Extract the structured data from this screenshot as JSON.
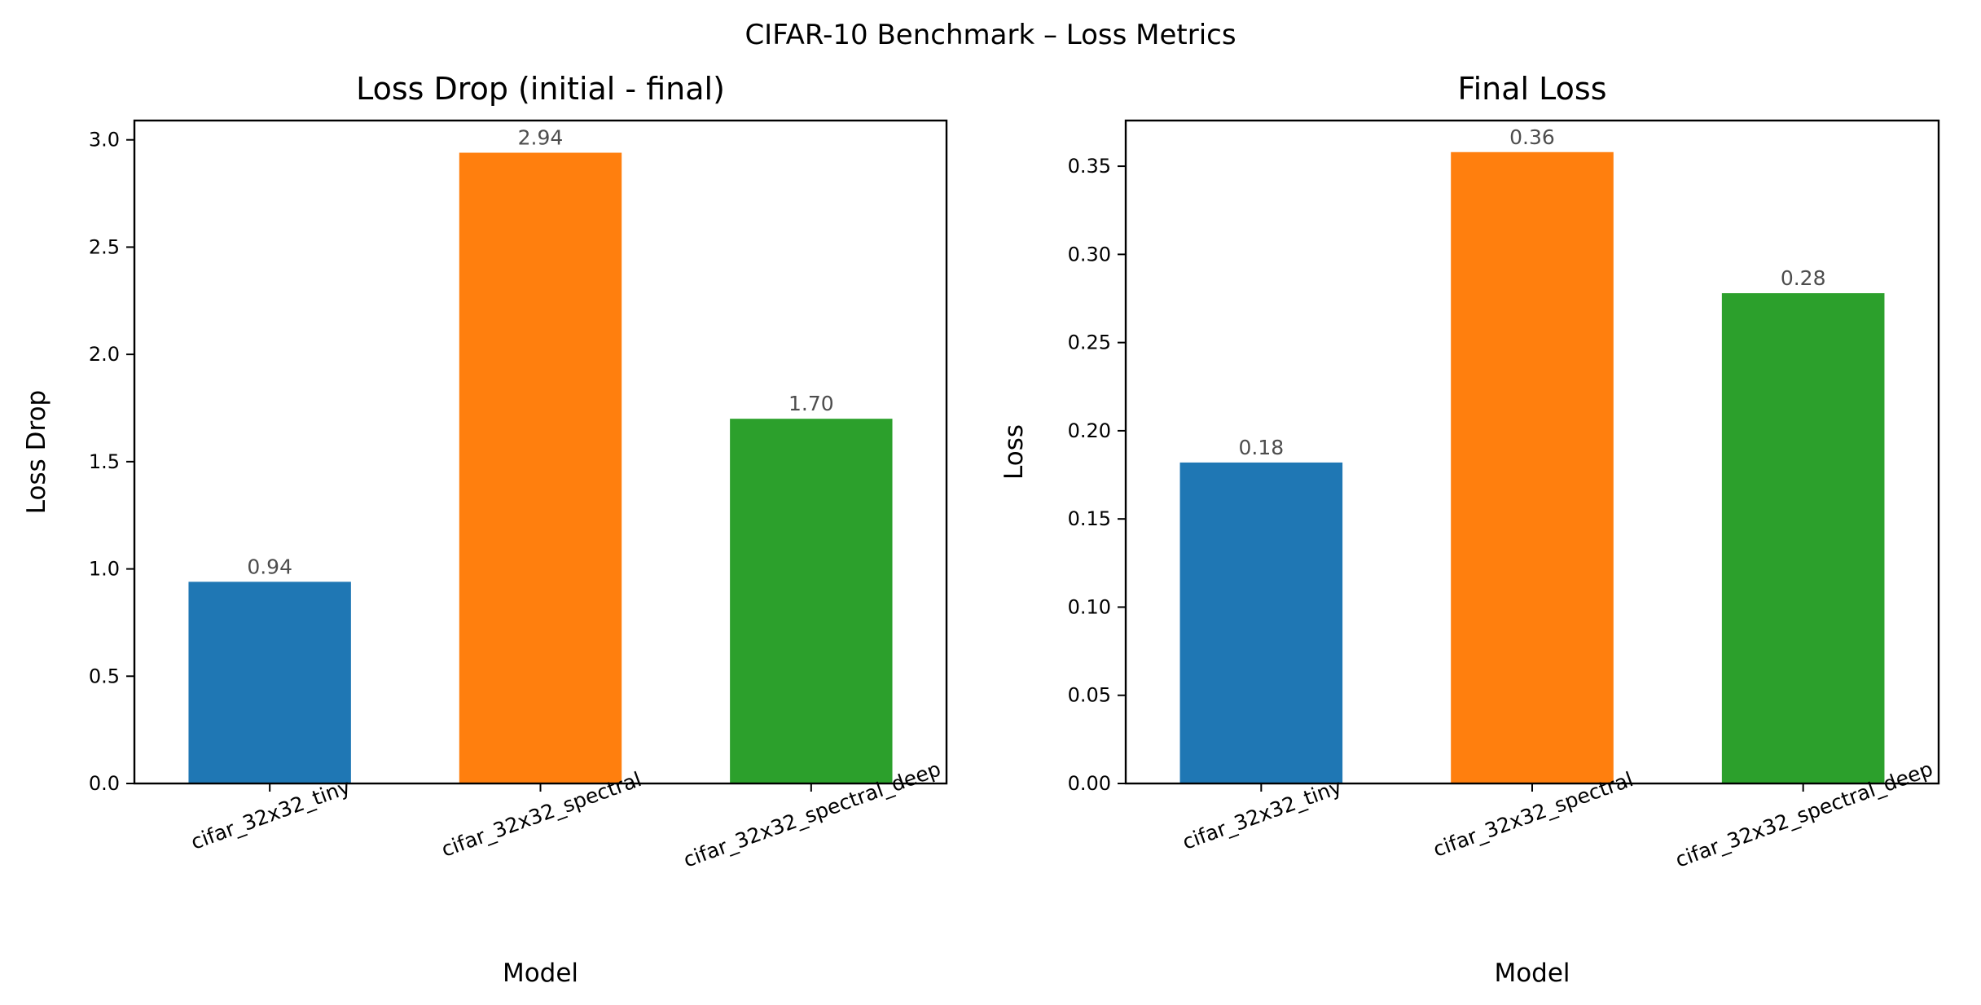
{
  "figure": {
    "suptitle": "CIFAR-10 Benchmark – Loss Metrics"
  },
  "colors": {
    "bar_colors": [
      "#1f77b4",
      "#ff7f0e",
      "#2ca02c"
    ],
    "axis": "#000000",
    "value_label": "#4d4d4d"
  },
  "chart_data": [
    {
      "type": "bar",
      "title": "Loss Drop (initial - final)",
      "xlabel": "Model",
      "ylabel": "Loss Drop",
      "categories": [
        "cifar_32x32_tiny",
        "cifar_32x32_spectral",
        "cifar_32x32_spectral_deep"
      ],
      "values": [
        0.94,
        2.94,
        1.7
      ],
      "value_labels": [
        "0.94",
        "2.94",
        "1.70"
      ],
      "ylim": [
        0,
        3.09
      ],
      "yticks": [
        0.0,
        0.5,
        1.0,
        1.5,
        2.0,
        2.5,
        3.0
      ],
      "ytick_labels": [
        "0.0",
        "0.5",
        "1.0",
        "1.5",
        "2.0",
        "2.5",
        "3.0"
      ],
      "grid": false
    },
    {
      "type": "bar",
      "title": "Final Loss",
      "xlabel": "Model",
      "ylabel": "Loss",
      "categories": [
        "cifar_32x32_tiny",
        "cifar_32x32_spectral",
        "cifar_32x32_spectral_deep"
      ],
      "values": [
        0.182,
        0.358,
        0.278
      ],
      "value_labels": [
        "0.18",
        "0.36",
        "0.28"
      ],
      "ylim": [
        0,
        0.3759
      ],
      "yticks": [
        0.0,
        0.05,
        0.1,
        0.15,
        0.2,
        0.25,
        0.3,
        0.35
      ],
      "ytick_labels": [
        "0.00",
        "0.05",
        "0.10",
        "0.15",
        "0.20",
        "0.25",
        "0.30",
        "0.35"
      ],
      "grid": false
    }
  ]
}
